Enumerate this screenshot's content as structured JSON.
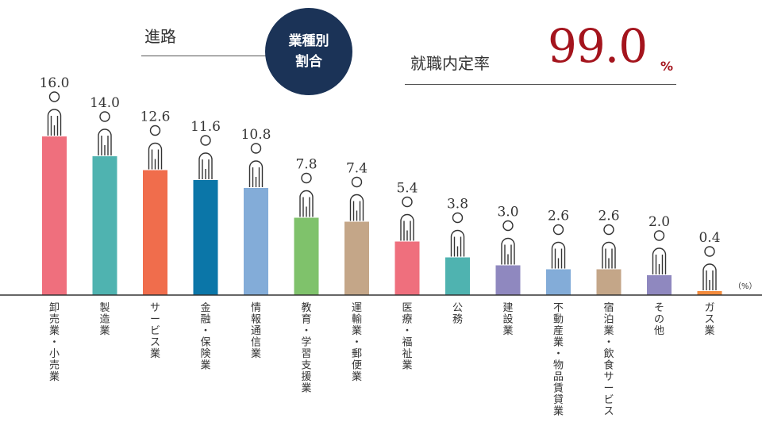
{
  "header": {
    "title": "進路",
    "badge_line1": "業種別",
    "badge_line2": "割合",
    "rate_label": "就職内定率",
    "rate_value": "99.0",
    "rate_unit": "%"
  },
  "chart_data": {
    "type": "bar",
    "categories": [
      "卸売業・小売業",
      "製造業",
      "サービス業",
      "金融・保険業",
      "情報通信業",
      "教育・学習支援業",
      "運輸業・郵便業",
      "医療・福祉業",
      "公務",
      "建設業",
      "不動産業・物品賃貸業",
      "宿泊業・飲食サービス",
      "その他",
      "ガス業"
    ],
    "values": [
      16.0,
      14.0,
      12.6,
      11.6,
      10.8,
      7.8,
      7.4,
      5.4,
      3.8,
      3.0,
      2.6,
      2.6,
      2.0,
      0.4
    ],
    "value_labels": [
      "16.0",
      "14.0",
      "12.6",
      "11.6",
      "10.8",
      "7.8",
      "7.4",
      "5.4",
      "3.8",
      "3.0",
      "2.6",
      "2.6",
      "2.0",
      "0.4"
    ],
    "colors": [
      "#ef6f7d",
      "#4fb3b0",
      "#f06d4c",
      "#0b76a8",
      "#83acd8",
      "#7fc26b",
      "#c4a688",
      "#ef6f7d",
      "#4fb3b0",
      "#8f88bf",
      "#83acd8",
      "#c4a688",
      "#8f88bf",
      "#f38b3c"
    ],
    "unit_label": "（%）",
    "ylim": [
      0,
      16
    ],
    "grid": false,
    "legend": "none"
  }
}
